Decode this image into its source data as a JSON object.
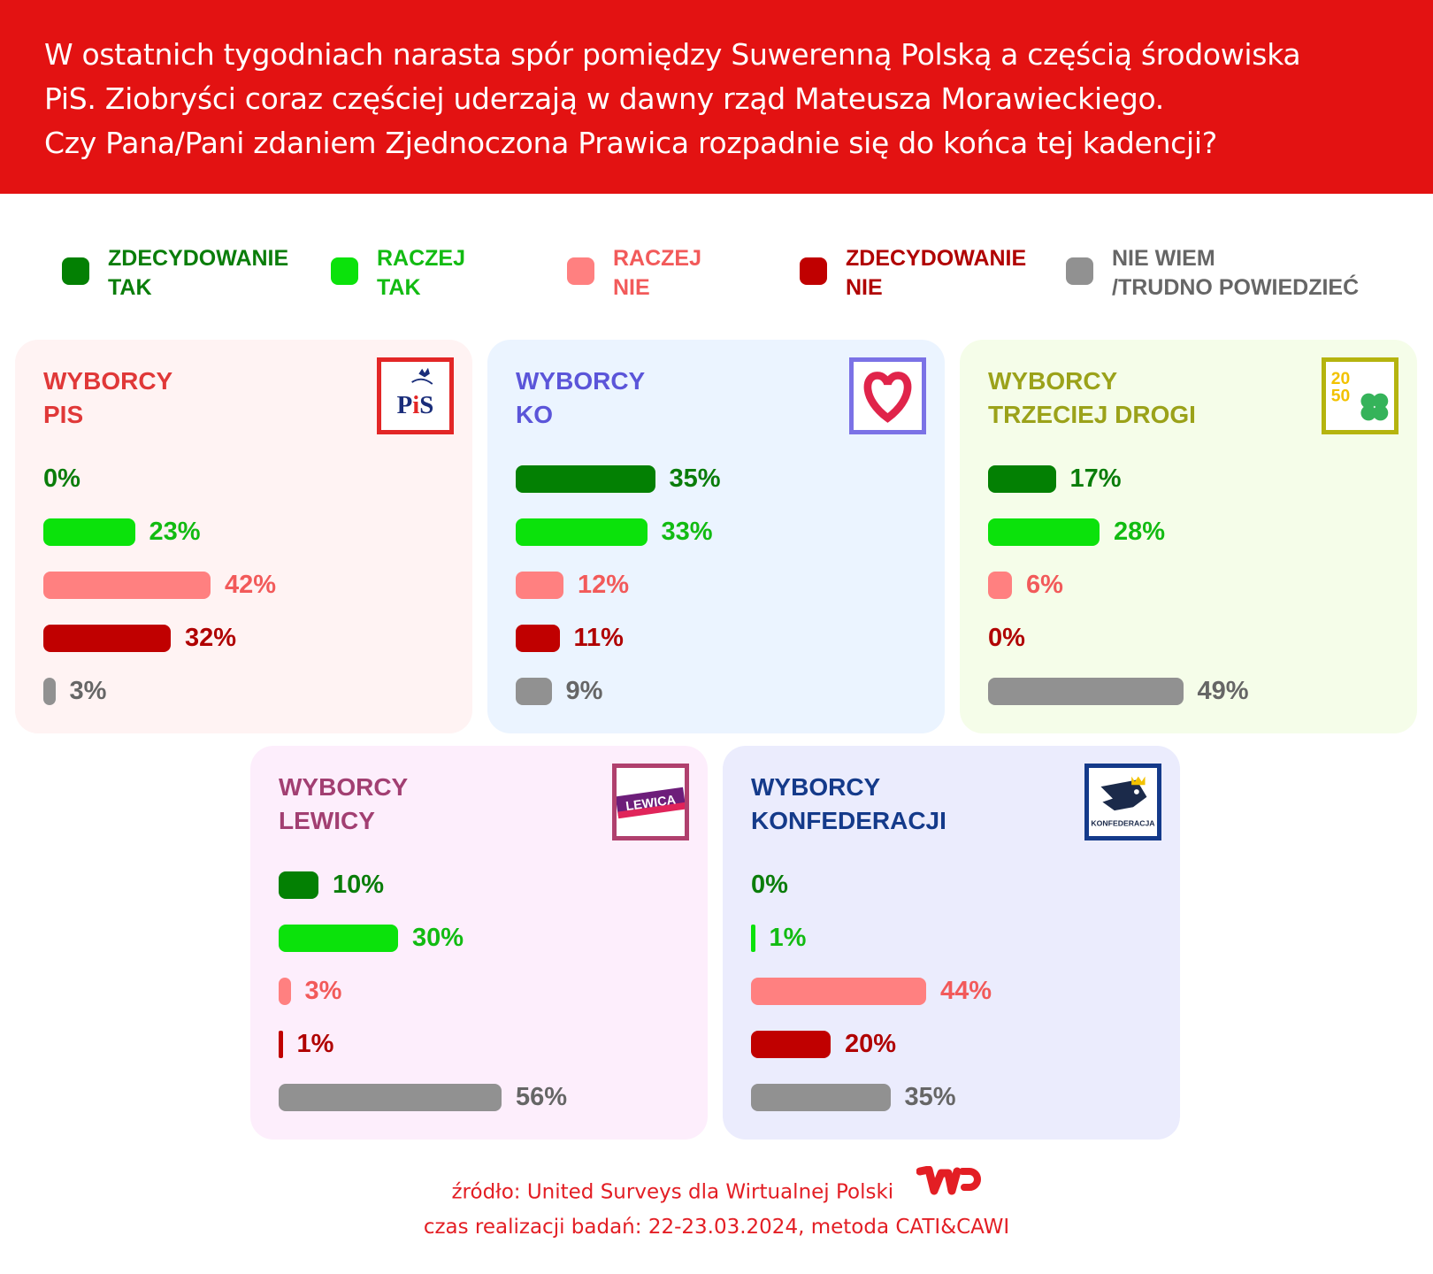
{
  "header": {
    "lines": [
      "W ostatnich tygodniach narasta spór pomiędzy Suwerenną Polską a częścią środowiska",
      "PiS. Ziobryści coraz częściej uderzają w dawny rząd Mateusza Morawieckiego.",
      "Czy Pana/Pani zdaniem Zjednoczona Prawica rozpadnie się do końca tej kadencji?"
    ]
  },
  "chart_data": {
    "type": "bar",
    "orientation": "horizontal",
    "title": "W ostatnich tygodniach narasta spór pomiędzy Suwerenną Polską a częścią środowiska PiS. Ziobryści coraz częściej uderzają w dawny rząd Mateusza Morawieckiego. Czy Pana/Pani zdaniem Zjednoczona Prawica rozpadnie się do końca tej kadencji?",
    "legend": {
      "placement": "top",
      "entries": [
        {
          "line1": "ZDECYDOWANIE",
          "line2": "TAK",
          "color": "#038003",
          "text_color": "#0a7d0a"
        },
        {
          "line1": "RACZEJ",
          "line2": "TAK",
          "color": "#0be20b",
          "text_color": "#12bb12"
        },
        {
          "line1": "RACZEJ",
          "line2": "NIE",
          "color": "#ff8080",
          "text_color": "#f25a5a"
        },
        {
          "line1": "ZDECYDOWANIE",
          "line2": "NIE",
          "color": "#c00000",
          "text_color": "#b00000"
        },
        {
          "line1": "NIE WIEM",
          "line2": "/TRUDNO POWIEDZIEĆ",
          "color": "#919191",
          "text_color": "#666666"
        }
      ]
    },
    "categories": [
      "Zdecydowanie tak",
      "Raczej tak",
      "Raczej nie",
      "Zdecydowanie nie",
      "Nie wiem/trudno powiedzieć"
    ],
    "unit": "%",
    "panels": [
      {
        "line1": "WYBORCY",
        "line2": "PIS",
        "logo": "pis-logo",
        "logo_text": "PiS",
        "title_color": "#e03838",
        "bg": "#fff3f3",
        "border": "#e32626",
        "values": [
          0,
          23,
          42,
          32,
          3
        ],
        "labels": [
          "0%",
          "23%",
          "42%",
          "32%",
          "3%"
        ]
      },
      {
        "line1": "WYBORCY",
        "line2": "KO",
        "logo": "ko-heart-logo",
        "title_color": "#5b55d9",
        "bg": "#ebf4ff",
        "border": "#7b72e6",
        "values": [
          35,
          33,
          12,
          11,
          9
        ],
        "labels": [
          "35%",
          "33%",
          "12%",
          "11%",
          "9%"
        ]
      },
      {
        "line1": "WYBORCY",
        "line2": "TRZECIEJ DROGI",
        "logo": "trzecia-droga-logo",
        "logo_text": "2050",
        "title_color": "#9ba21a",
        "bg": "#f5fde9",
        "border": "#b5b40f",
        "values": [
          17,
          28,
          6,
          0,
          49
        ],
        "labels": [
          "17%",
          "28%",
          "6%",
          "0%",
          "49%"
        ]
      },
      {
        "line1": "WYBORCY",
        "line2": "LEWICY",
        "logo": "lewica-logo",
        "logo_text": "LEWICA",
        "title_color": "#a23f72",
        "bg": "#fdeefc",
        "border": "#b0406e",
        "values": [
          10,
          30,
          3,
          1,
          56
        ],
        "labels": [
          "10%",
          "30%",
          "3%",
          "1%",
          "56%"
        ]
      },
      {
        "line1": "WYBORCY",
        "line2": "KONFEDERACJI",
        "logo": "konfederacja-logo",
        "logo_text": "KONFEDERACJA",
        "title_color": "#143a8a",
        "bg": "#ebecfd",
        "border": "#143a8a",
        "values": [
          0,
          1,
          44,
          20,
          35
        ],
        "labels": [
          "0%",
          "1%",
          "44%",
          "20%",
          "35%"
        ]
      }
    ]
  },
  "footer": {
    "source": "źródło: United Surveys dla Wirtualnej Polski",
    "logo": "wp-logo",
    "logo_text": "WP",
    "details": "czas realizacji badań: 22-23.03.2024, metoda CATI&CAWI",
    "color": "#e31e24"
  }
}
